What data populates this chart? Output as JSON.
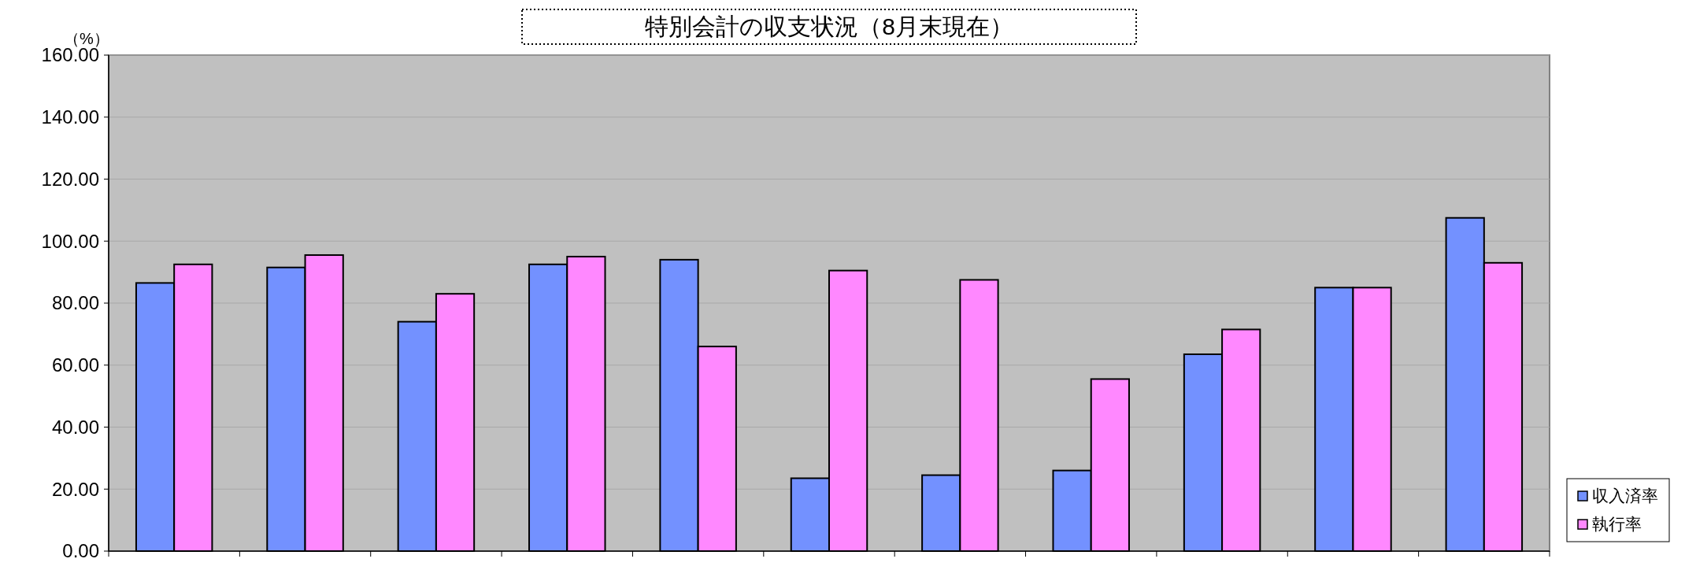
{
  "chart_data": {
    "type": "bar",
    "title": "特別会計の収支状況（8月末現在）",
    "ylabel": "（%）",
    "categories": [
      null,
      null,
      null,
      null,
      null,
      null,
      null,
      null,
      null,
      null,
      null
    ],
    "series": [
      {
        "name": "収入済率",
        "color": "#7391ff",
        "values": [
          86.5,
          91.5,
          74,
          92.5,
          94,
          23.5,
          24.5,
          26,
          63.5,
          85,
          107.5
        ]
      },
      {
        "name": "執行率",
        "color": "#ff88ff",
        "values": [
          92.5,
          95.5,
          83,
          95,
          66,
          90.5,
          87.5,
          55.5,
          71.5,
          85,
          93
        ]
      }
    ],
    "ylim": [
      0,
      160
    ],
    "yticks": [
      {
        "value": 0,
        "label": "0.00"
      },
      {
        "value": 20,
        "label": "20.00"
      },
      {
        "value": 40,
        "label": "40.00"
      },
      {
        "value": 60,
        "label": "60.00"
      },
      {
        "value": 80,
        "label": "80.00"
      },
      {
        "value": 100,
        "label": "100.00"
      },
      {
        "value": 120,
        "label": "120.00"
      },
      {
        "value": 140,
        "label": "140.00"
      },
      {
        "value": 160,
        "label": "160.00"
      }
    ],
    "grid": "y",
    "legend": "bottom right"
  }
}
